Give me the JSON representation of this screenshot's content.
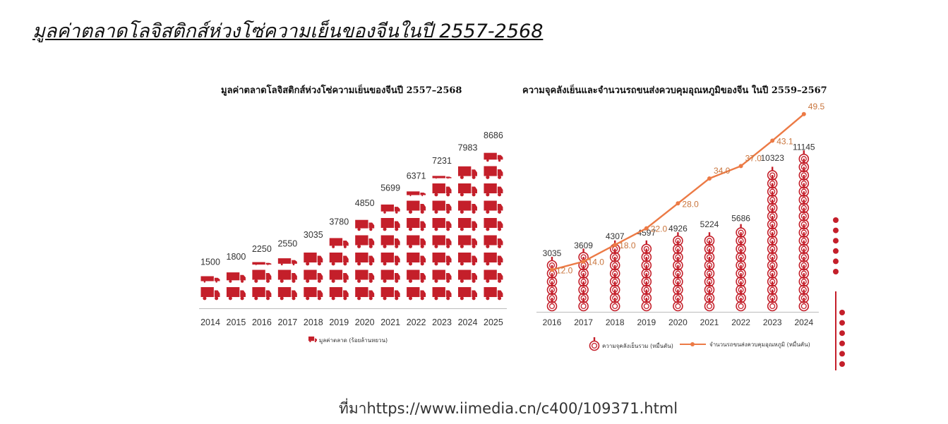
{
  "page": {
    "title": "มูลค่าตลาดโลจิสติกส์ห่วงโซ่ความเย็นของจีนในปี 2557-2568",
    "source": "ที่มาhttps://www.iimedia.cn/c400/109371.html"
  },
  "colors": {
    "truck": "#c41f2a",
    "thermometer": "#c41f2a",
    "line": "#ec7a45",
    "line_label": "#c9753d",
    "text": "#333333"
  },
  "chart_data": [
    {
      "type": "bar",
      "title": "มูลค่าตลาดโลจิสติกส์ห่วงโซ่ความเย็นของจีนปี 2557–2568",
      "categories": [
        "2014",
        "2015",
        "2016",
        "2017",
        "2018",
        "2019",
        "2020",
        "2021",
        "2022",
        "2023",
        "2024",
        "2025"
      ],
      "series": [
        {
          "name": "มูลค่าตลาด (ร้อยล้านหยวน)",
          "values": [
            1500,
            1800,
            2250,
            2550,
            3035,
            3780,
            4850,
            5699,
            6371,
            7231,
            7983,
            8686
          ],
          "icon": "truck-icon"
        }
      ],
      "legend": "bottom"
    },
    {
      "type": "bar",
      "title": "ความจุคลังเย็นและจำนวนรถขนส่งควบคุมอุณหภูมิของจีน ในปี 2559–2567",
      "categories": [
        "2016",
        "2017",
        "2018",
        "2019",
        "2020",
        "2021",
        "2022",
        "2023",
        "2024"
      ],
      "series": [
        {
          "name": "ความจุคลังเย็นรวม (หมื่นตัน)",
          "values": [
            3035,
            3609,
            4307,
            4597,
            4926,
            5224,
            5686,
            10323,
            11145
          ],
          "icon": "thermometer-icon"
        },
        {
          "name": "จำนวนรถขนส่งควบคุมอุณหภูมิ (หมื่นคัน)",
          "type": "line",
          "values": [
            12.0,
            14.0,
            18.0,
            22.0,
            28.0,
            34.0,
            37.0,
            43.1,
            49.5
          ],
          "labels": [
            "12.0",
            "14.0",
            "18.0",
            "22.0",
            "28.0",
            "34.0",
            "37.0",
            "43.1",
            "49.5"
          ]
        }
      ],
      "legend": "bottom"
    }
  ]
}
